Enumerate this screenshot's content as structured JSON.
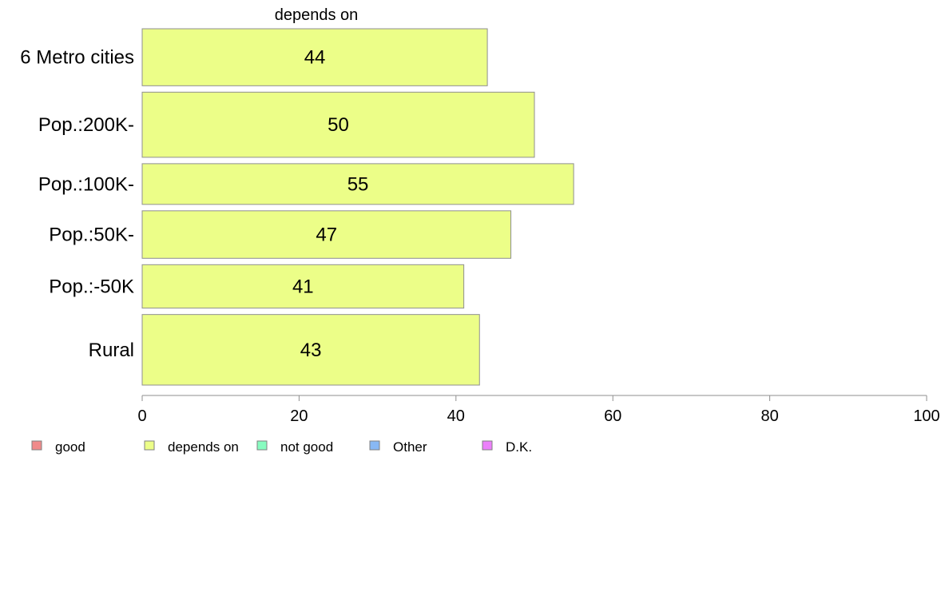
{
  "chart_data": {
    "type": "bar",
    "orientation": "horizontal",
    "title": "depends on",
    "categories": [
      "6 Metro cities",
      "Pop.:200K-",
      "Pop.:100K-",
      "Pop.:50K-",
      "Pop.:-50K",
      "Rural"
    ],
    "values": [
      44,
      50,
      55,
      47,
      41,
      43
    ],
    "relative_bar_weights": [
      0.84,
      0.96,
      0.6,
      0.7,
      0.64,
      1.04
    ],
    "xlim": [
      0,
      100
    ],
    "xticks": [
      0,
      20,
      40,
      60,
      80,
      100
    ],
    "xlabel": "",
    "ylabel": "",
    "grid": false,
    "legend_position": "bottom",
    "legend": [
      {
        "label": "good",
        "color": "#f08a8a"
      },
      {
        "label": "depends on",
        "color": "#ecfe88"
      },
      {
        "label": "not good",
        "color": "#88fcc0"
      },
      {
        "label": "Other",
        "color": "#88b8f4"
      },
      {
        "label": "D.K.",
        "color": "#ec80fa"
      }
    ],
    "bar_color": "#ecfe88",
    "bar_border_color": "#8f8f8f"
  }
}
